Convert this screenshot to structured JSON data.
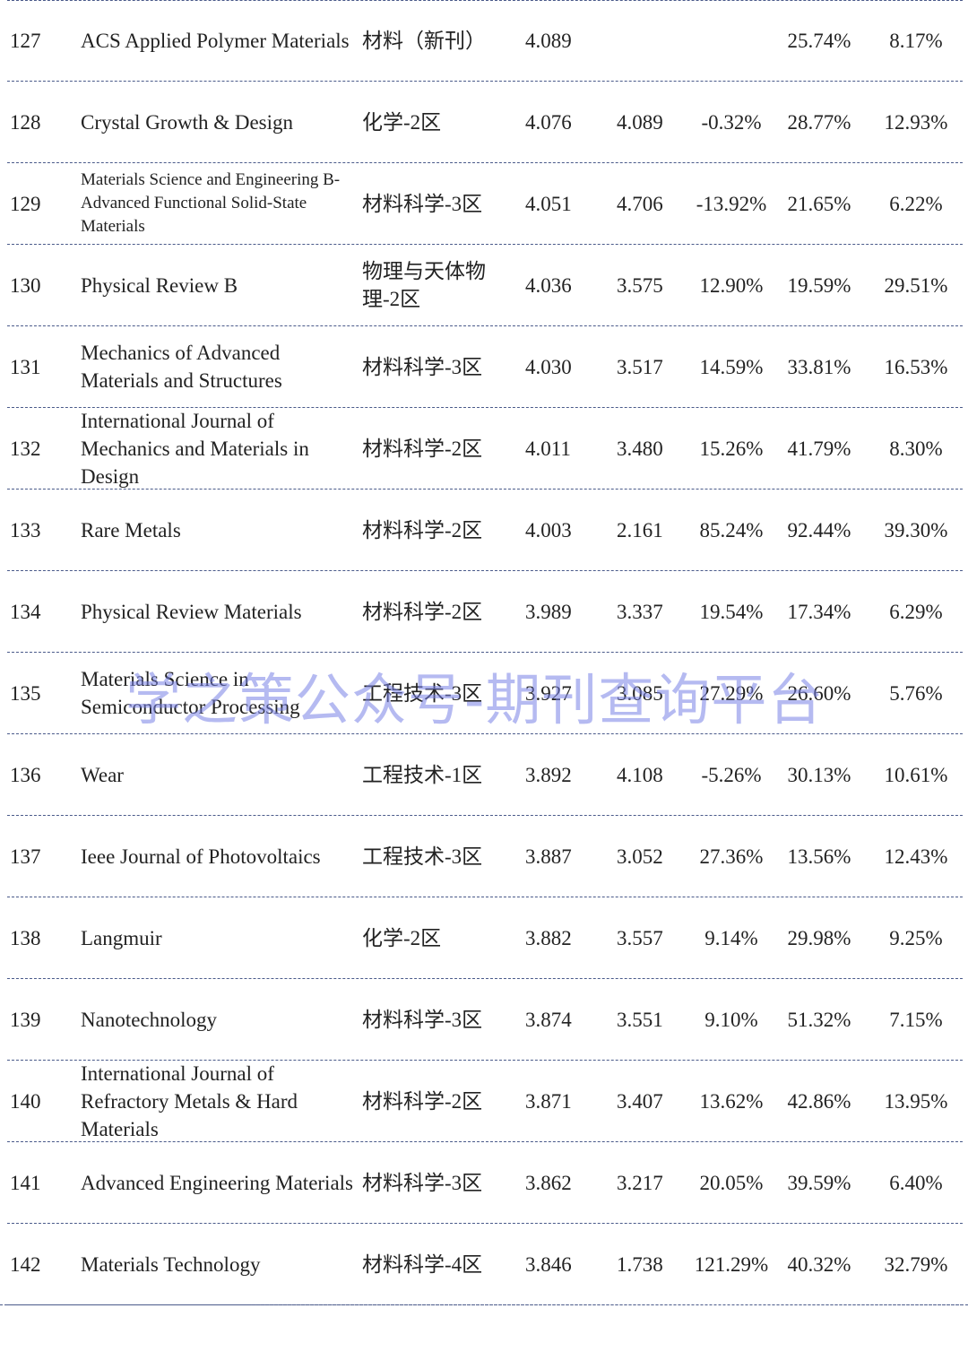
{
  "rows": [
    {
      "num": "127",
      "name": "ACS Applied Polymer Materials",
      "category": "材料（新刊）",
      "if": "4.089",
      "prev": "",
      "growth": "",
      "p1": "25.74%",
      "p2": "8.17%"
    },
    {
      "num": "128",
      "name": "Crystal Growth & Design",
      "category": "化学-2区",
      "if": "4.076",
      "prev": "4.089",
      "growth": "-0.32%",
      "p1": "28.77%",
      "p2": "12.93%"
    },
    {
      "num": "129",
      "name": "Materials Science and Engineering B-Advanced Functional Solid-State Materials",
      "category": "材料科学-3区",
      "if": "4.051",
      "prev": "4.706",
      "growth": "-13.92%",
      "p1": "21.65%",
      "p2": "6.22%"
    },
    {
      "num": "130",
      "name": "Physical Review B",
      "category": "物理与天体物理-2区",
      "if": "4.036",
      "prev": "3.575",
      "growth": "12.90%",
      "p1": "19.59%",
      "p2": "29.51%"
    },
    {
      "num": "131",
      "name": "Mechanics of Advanced Materials and Structures",
      "category": "材料科学-3区",
      "if": "4.030",
      "prev": "3.517",
      "growth": "14.59%",
      "p1": "33.81%",
      "p2": "16.53%"
    },
    {
      "num": "132",
      "name": "International Journal of Mechanics and Materials in Design",
      "category": "材料科学-2区",
      "if": "4.011",
      "prev": "3.480",
      "growth": "15.26%",
      "p1": "41.79%",
      "p2": "8.30%"
    },
    {
      "num": "133",
      "name": "Rare Metals",
      "category": "材料科学-2区",
      "if": "4.003",
      "prev": "2.161",
      "growth": "85.24%",
      "p1": "92.44%",
      "p2": "39.30%"
    },
    {
      "num": "134",
      "name": "Physical Review Materials",
      "category": "材料科学-2区",
      "if": "3.989",
      "prev": "3.337",
      "growth": "19.54%",
      "p1": "17.34%",
      "p2": "6.29%"
    },
    {
      "num": "135",
      "name": "Materials Science in Semiconductor Processing",
      "category": "工程技术-3区",
      "if": "3.927",
      "prev": "3.085",
      "growth": "27.29%",
      "p1": "26.60%",
      "p2": "5.76%"
    },
    {
      "num": "136",
      "name": "Wear",
      "category": "工程技术-1区",
      "if": "3.892",
      "prev": "4.108",
      "growth": "-5.26%",
      "p1": "30.13%",
      "p2": "10.61%"
    },
    {
      "num": "137",
      "name": "Ieee Journal of Photovoltaics",
      "category": "工程技术-3区",
      "if": "3.887",
      "prev": "3.052",
      "growth": "27.36%",
      "p1": "13.56%",
      "p2": "12.43%"
    },
    {
      "num": "138",
      "name": "Langmuir",
      "category": "化学-2区",
      "if": "3.882",
      "prev": "3.557",
      "growth": "9.14%",
      "p1": "29.98%",
      "p2": "9.25%"
    },
    {
      "num": "139",
      "name": "Nanotechnology",
      "category": "材料科学-3区",
      "if": "3.874",
      "prev": "3.551",
      "growth": "9.10%",
      "p1": "51.32%",
      "p2": "7.15%"
    },
    {
      "num": "140",
      "name": "International Journal of Refractory Metals & Hard Materials",
      "category": "材料科学-2区",
      "if": "3.871",
      "prev": "3.407",
      "growth": "13.62%",
      "p1": "42.86%",
      "p2": "13.95%"
    },
    {
      "num": "141",
      "name": "Advanced Engineering Materials",
      "category": "材料科学-3区",
      "if": "3.862",
      "prev": "3.217",
      "growth": "20.05%",
      "p1": "39.59%",
      "p2": "6.40%"
    },
    {
      "num": "142",
      "name": "Materials Technology",
      "category": "材料科学-4区",
      "if": "3.846",
      "prev": "1.738",
      "growth": "121.29%",
      "p1": "40.32%",
      "p2": "32.79%"
    }
  ],
  "watermark": "学之策公众号-期刊查询平台",
  "colors": {
    "rule": "#4a5a8a",
    "watermark": "#7882e6"
  }
}
